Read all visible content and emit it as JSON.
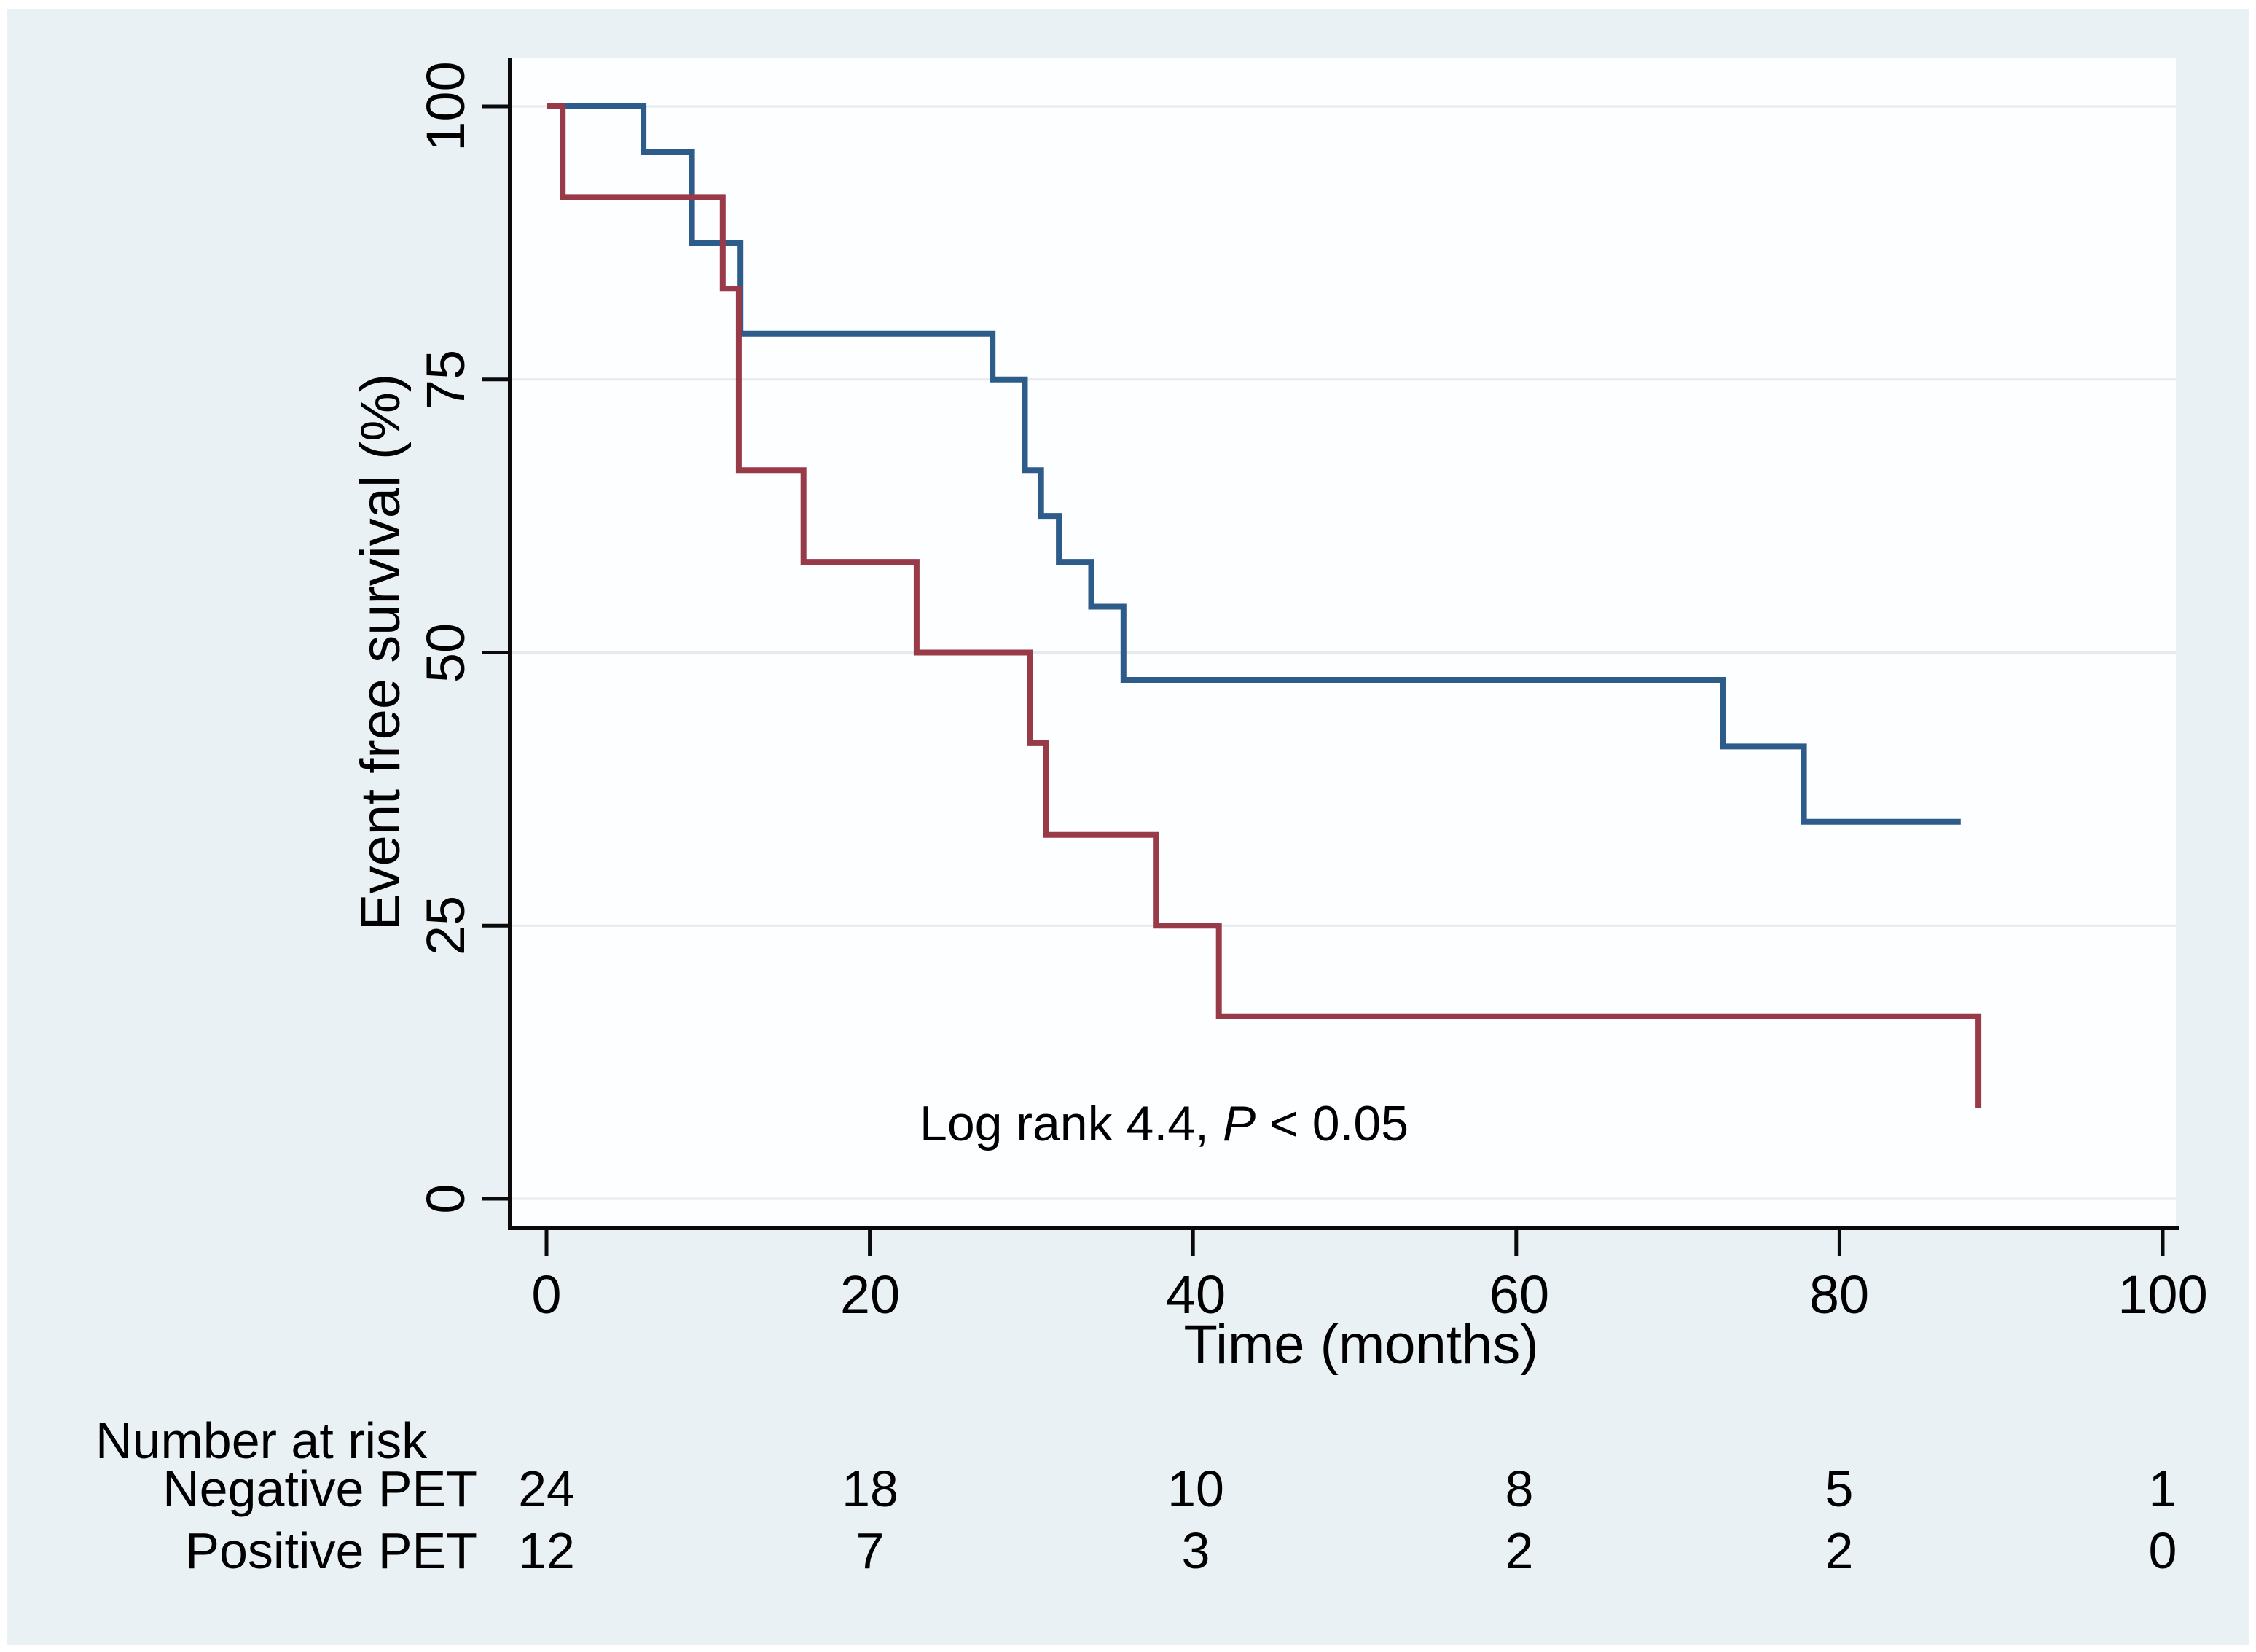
{
  "figure": {
    "background": "#ffffff",
    "panel_background": "#e9f1f4",
    "plot_background": "#fdfeff",
    "gridline_color": "#e5eaec",
    "axis_color": "#0a0a0a"
  },
  "chart_data": {
    "type": "line",
    "subtype": "kaplan-meier-step",
    "title": "",
    "xlabel": "Time (months)",
    "ylabel": "Event free survival (%)",
    "xlim": [
      0,
      100
    ],
    "ylim": [
      0,
      100
    ],
    "grid": "horizontal-only",
    "legend_position": "none",
    "x_ticks": [
      {
        "value": 0,
        "label": "0"
      },
      {
        "value": 20,
        "label": "20"
      },
      {
        "value": 40,
        "label": "40"
      },
      {
        "value": 60,
        "label": "60"
      },
      {
        "value": 80,
        "label": "80"
      },
      {
        "value": 100,
        "label": "100"
      }
    ],
    "y_ticks": [
      {
        "value": 0,
        "label": "0"
      },
      {
        "value": 25,
        "label": "25"
      },
      {
        "value": 50,
        "label": "50"
      },
      {
        "value": 75,
        "label": "75"
      },
      {
        "value": 100,
        "label": "100"
      }
    ],
    "annotation": {
      "prefix": "Log rank 4.4, ",
      "italic": "P",
      "suffix": " < 0.05"
    },
    "series": [
      {
        "name": "Negative PET",
        "color": "#2e5c8a",
        "points": [
          [
            0,
            100
          ],
          [
            6,
            100
          ],
          [
            6,
            95.8
          ],
          [
            9,
            95.8
          ],
          [
            9,
            87.5
          ],
          [
            12,
            87.5
          ],
          [
            12,
            79.2
          ],
          [
            27.6,
            79.2
          ],
          [
            27.6,
            75
          ],
          [
            29.6,
            75
          ],
          [
            29.6,
            66.7
          ],
          [
            30.6,
            66.7
          ],
          [
            30.6,
            62.5
          ],
          [
            31.7,
            62.5
          ],
          [
            31.7,
            58.3
          ],
          [
            33.7,
            58.3
          ],
          [
            33.7,
            54.2
          ],
          [
            35.7,
            54.2
          ],
          [
            35.7,
            47.5
          ],
          [
            72.8,
            47.5
          ],
          [
            72.8,
            41.4
          ],
          [
            77.8,
            41.4
          ],
          [
            77.8,
            34.5
          ],
          [
            87.5,
            34.5
          ]
        ]
      },
      {
        "name": "Positive PET",
        "color": "#993a48",
        "points": [
          [
            0,
            100
          ],
          [
            1,
            100
          ],
          [
            1,
            91.7
          ],
          [
            10.9,
            91.7
          ],
          [
            10.9,
            83.3
          ],
          [
            11.9,
            83.3
          ],
          [
            11.9,
            66.7
          ],
          [
            15.9,
            66.7
          ],
          [
            15.9,
            58.3
          ],
          [
            22.9,
            58.3
          ],
          [
            22.9,
            50
          ],
          [
            29.9,
            50
          ],
          [
            29.9,
            41.7
          ],
          [
            30.9,
            41.7
          ],
          [
            30.9,
            33.3
          ],
          [
            37.7,
            33.3
          ],
          [
            37.7,
            25
          ],
          [
            41.6,
            25
          ],
          [
            41.6,
            16.7
          ],
          [
            88.6,
            16.7
          ],
          [
            88.6,
            8.3
          ]
        ]
      }
    ],
    "at_risk": {
      "title": "Number at risk",
      "times": [
        0,
        20,
        40,
        60,
        80,
        100
      ],
      "rows": [
        {
          "label": "Negative PET",
          "counts": [
            24,
            18,
            10,
            8,
            5,
            1
          ]
        },
        {
          "label": "Positive PET",
          "counts": [
            12,
            7,
            3,
            2,
            2,
            0
          ]
        }
      ]
    }
  }
}
